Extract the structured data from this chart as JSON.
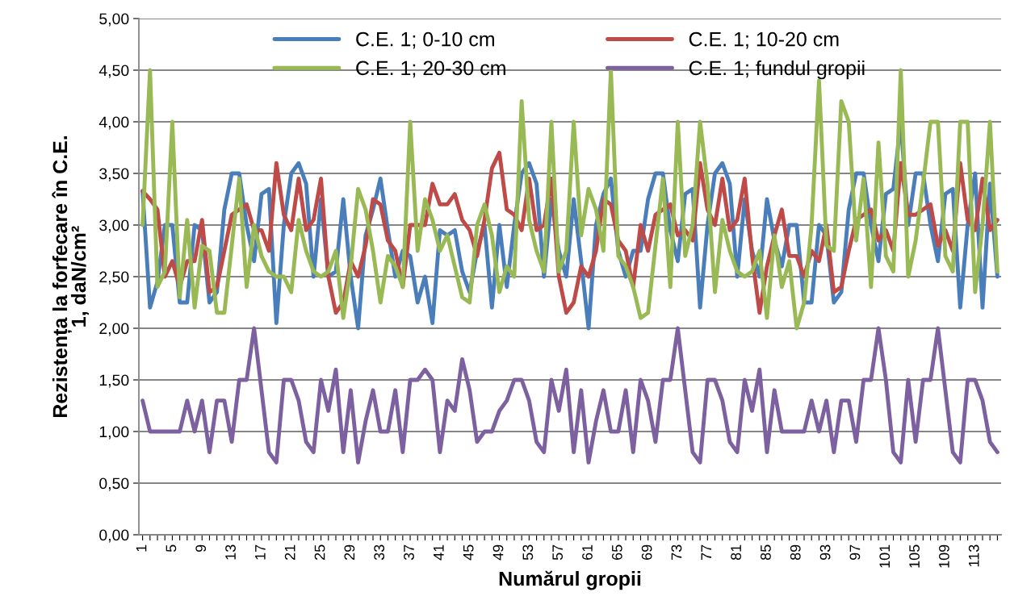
{
  "chart_data": {
    "type": "line",
    "xlabel": "Numărul gropii",
    "ylabel": "Rezistența la forfecare în C.E. 1, daN/cm²",
    "categories": [
      "1",
      null,
      null,
      null,
      "5",
      null,
      null,
      null,
      "9",
      null,
      null,
      null,
      "13",
      null,
      null,
      null,
      "17",
      null,
      null,
      null,
      "21",
      null,
      null,
      null,
      "25",
      null,
      null,
      null,
      "29",
      null,
      null,
      null,
      "33",
      null,
      null,
      null,
      "37",
      null,
      null,
      null,
      "41",
      null,
      null,
      null,
      "45",
      null,
      null,
      null,
      "49",
      null,
      null,
      null,
      "53",
      null,
      null,
      null,
      "57",
      null,
      null,
      null,
      "61",
      null,
      null,
      null,
      "65",
      null,
      null,
      null,
      "69",
      null,
      null,
      null,
      "73",
      null,
      null,
      null,
      "77",
      null,
      null,
      null,
      "81",
      null,
      null,
      null,
      "85",
      null,
      null,
      null,
      "89",
      null,
      null,
      null,
      "93",
      null,
      null,
      null,
      "97",
      null,
      null,
      null,
      "101",
      null,
      null,
      null,
      "105",
      null,
      null,
      null,
      "109",
      null,
      null,
      null,
      "113",
      null,
      null,
      null
    ],
    "series": [
      {
        "name": "C.E. 1; 0-10 cm",
        "color": "#4a7ebb",
        "values": [
          3.33,
          2.2,
          2.45,
          3.0,
          3.0,
          2.25,
          2.25,
          3.0,
          2.95,
          2.25,
          2.35,
          3.15,
          3.5,
          3.5,
          3.0,
          2.65,
          3.3,
          3.35,
          2.05,
          3.0,
          3.5,
          3.6,
          3.4,
          2.5,
          3.25,
          2.5,
          2.55,
          3.25,
          2.5,
          2.0,
          2.9,
          3.15,
          3.45,
          2.95,
          2.5,
          2.75,
          2.7,
          2.25,
          2.5,
          2.05,
          2.95,
          2.9,
          2.95,
          2.55,
          2.35,
          2.75,
          3.0,
          2.2,
          3.0,
          2.4,
          3.0,
          3.5,
          3.6,
          3.4,
          2.5,
          3.25,
          2.75,
          2.5,
          3.25,
          2.65,
          2.0,
          3.0,
          3.3,
          3.45,
          2.75,
          2.5,
          2.75,
          2.75,
          3.25,
          3.5,
          3.5,
          2.95,
          2.65,
          3.3,
          3.35,
          2.2,
          3.0,
          3.5,
          3.6,
          3.4,
          2.5,
          3.25,
          2.75,
          2.5,
          3.25,
          2.85,
          2.6,
          3.0,
          3.0,
          2.25,
          2.25,
          3.0,
          2.9,
          2.25,
          2.35,
          3.15,
          3.5,
          3.5,
          3.0,
          2.65,
          3.3,
          3.35,
          4.0,
          3.0,
          3.5,
          3.5,
          3.0,
          2.65,
          3.3,
          3.35,
          2.2,
          3.0,
          3.5,
          2.2,
          3.4,
          2.5
        ]
      },
      {
        "name": "C.E. 1; 10-20 cm",
        "color": "#be4b48",
        "values": [
          3.33,
          3.25,
          3.15,
          2.5,
          2.65,
          2.4,
          2.65,
          2.65,
          3.05,
          2.35,
          2.4,
          2.75,
          3.1,
          3.15,
          3.2,
          2.95,
          2.95,
          2.75,
          3.6,
          3.1,
          2.95,
          3.45,
          2.95,
          3.05,
          3.45,
          2.5,
          2.15,
          2.25,
          2.65,
          2.5,
          2.8,
          3.25,
          3.2,
          2.85,
          2.75,
          2.4,
          3.0,
          3.0,
          3.0,
          3.4,
          3.2,
          3.2,
          3.3,
          3.05,
          2.95,
          2.7,
          3.05,
          3.55,
          3.7,
          3.15,
          3.1,
          2.95,
          3.45,
          2.95,
          3.0,
          3.45,
          2.5,
          2.15,
          2.25,
          2.6,
          2.5,
          2.75,
          3.25,
          3.2,
          2.85,
          2.75,
          2.4,
          3.0,
          2.75,
          3.1,
          3.15,
          3.2,
          2.9,
          2.95,
          2.85,
          3.6,
          3.15,
          3.0,
          3.45,
          2.95,
          3.05,
          3.45,
          2.7,
          2.15,
          2.6,
          2.9,
          3.15,
          2.7,
          2.7,
          2.5,
          2.75,
          2.65,
          3.0,
          2.35,
          2.4,
          2.75,
          3.05,
          3.1,
          3.15,
          2.85,
          2.95,
          2.75,
          3.6,
          3.1,
          3.1,
          3.15,
          3.2,
          2.8,
          2.95,
          2.75,
          3.6,
          3.05,
          2.95,
          3.45,
          2.95,
          3.05
        ]
      },
      {
        "name": "C.E. 1; 20-30 cm",
        "color": "#98b954",
        "values": [
          3.0,
          4.5,
          2.4,
          2.55,
          4.0,
          2.3,
          3.05,
          2.2,
          2.8,
          2.75,
          2.15,
          2.15,
          2.8,
          3.45,
          2.4,
          3.0,
          2.7,
          2.55,
          2.5,
          2.5,
          2.35,
          3.05,
          2.75,
          2.55,
          2.5,
          2.55,
          2.75,
          2.1,
          2.6,
          3.35,
          3.15,
          2.75,
          2.25,
          2.7,
          2.6,
          2.4,
          4.0,
          2.75,
          3.25,
          3.05,
          2.75,
          2.9,
          2.6,
          2.3,
          2.25,
          3.0,
          3.2,
          2.9,
          2.35,
          2.6,
          2.5,
          4.2,
          3.05,
          2.75,
          2.55,
          4.0,
          2.55,
          2.75,
          4.0,
          2.9,
          3.35,
          3.15,
          2.75,
          4.5,
          2.7,
          2.6,
          2.4,
          2.1,
          2.15,
          2.8,
          3.45,
          2.4,
          4.0,
          2.7,
          3.0,
          4.0,
          3.4,
          2.35,
          3.05,
          2.75,
          2.55,
          2.5,
          2.55,
          2.75,
          2.1,
          2.9,
          2.4,
          2.65,
          2.0,
          2.25,
          3.0,
          4.4,
          2.8,
          2.75,
          4.2,
          4.0,
          2.85,
          3.45,
          2.4,
          3.8,
          2.7,
          2.55,
          4.5,
          2.5,
          2.85,
          3.4,
          4.0,
          4.0,
          2.7,
          2.55,
          4.0,
          4.0,
          2.35,
          3.0,
          4.0,
          2.55
        ]
      },
      {
        "name": "C.E. 1; fundul gropii",
        "color": "#7d60a0",
        "values": [
          1.3,
          1.0,
          1.0,
          1.0,
          1.0,
          1.0,
          1.3,
          1.0,
          1.3,
          0.8,
          1.3,
          1.3,
          0.9,
          1.5,
          1.5,
          2.0,
          1.4,
          0.8,
          0.7,
          1.5,
          1.5,
          1.3,
          0.9,
          0.8,
          1.5,
          1.2,
          1.6,
          0.8,
          1.4,
          0.7,
          1.1,
          1.4,
          1.0,
          1.0,
          1.4,
          0.8,
          1.5,
          1.5,
          1.6,
          1.5,
          0.8,
          1.3,
          1.2,
          1.7,
          1.4,
          0.9,
          1.0,
          1.0,
          1.2,
          1.3,
          1.5,
          1.5,
          1.3,
          0.9,
          0.8,
          1.5,
          1.2,
          1.6,
          0.8,
          1.4,
          0.7,
          1.1,
          1.4,
          1.0,
          1.0,
          1.4,
          0.8,
          1.5,
          1.3,
          0.9,
          1.5,
          1.5,
          2.0,
          1.4,
          0.8,
          0.7,
          1.5,
          1.5,
          1.3,
          0.9,
          0.8,
          1.5,
          1.2,
          1.6,
          0.8,
          1.4,
          1.0,
          1.0,
          1.0,
          1.0,
          1.3,
          1.0,
          1.3,
          0.8,
          1.3,
          1.3,
          0.9,
          1.5,
          1.5,
          2.0,
          1.5,
          0.8,
          0.7,
          1.5,
          0.9,
          1.5,
          1.5,
          2.0,
          1.4,
          0.8,
          0.7,
          1.5,
          1.5,
          1.3,
          0.9,
          0.8
        ]
      }
    ],
    "ylim": [
      0,
      5
    ],
    "yticks": [
      {
        "value": 0,
        "label": "0,00"
      },
      {
        "value": 0.5,
        "label": "0,50"
      },
      {
        "value": 1,
        "label": "1,00"
      },
      {
        "value": 1.5,
        "label": "1,50"
      },
      {
        "value": 2,
        "label": "2,00"
      },
      {
        "value": 2.5,
        "label": "2,50"
      },
      {
        "value": 3,
        "label": "3,00"
      },
      {
        "value": 3.5,
        "label": "3,50"
      },
      {
        "value": 4,
        "label": "4,00"
      },
      {
        "value": 4.5,
        "label": "4,50"
      },
      {
        "value": 5,
        "label": "5,00"
      }
    ],
    "grid": "y",
    "legend": "top",
    "marker": "none",
    "line_style": "solid"
  }
}
